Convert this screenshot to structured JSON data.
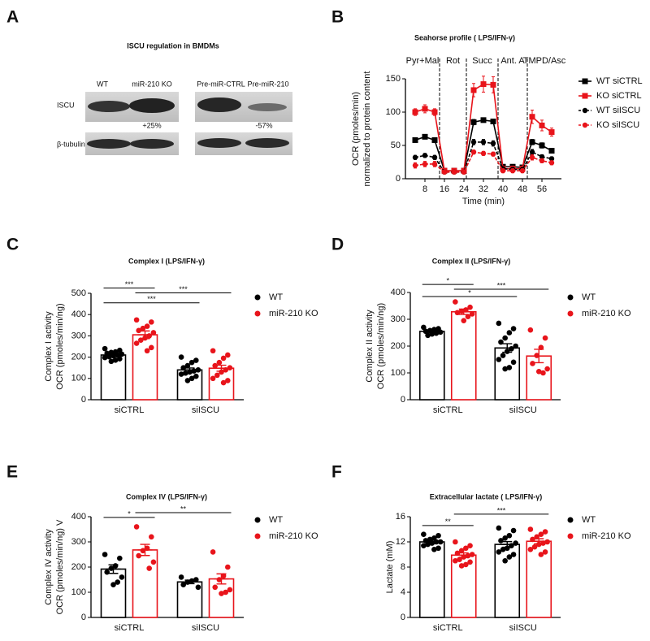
{
  "blot": {
    "panel": "A",
    "title": "ISCU regulation in BMDMs",
    "lanes": [
      "WT",
      "miR-210 KO",
      "Pre-miR-CTRL",
      "Pre-miR-210"
    ],
    "rows": [
      "ISCU",
      "β-tubulin"
    ],
    "changes": [
      "+25%",
      "-57%"
    ]
  },
  "chart_data": [
    {
      "type": "line",
      "panel": "B",
      "title": "Seahorse profile ( LPS/IFN-γ)",
      "x_label": "Time (min)",
      "y_label": [
        "OCR (pmoles/min)",
        "normalized to protein content"
      ],
      "phases": [
        "Pyr+Mal",
        "Rot",
        "Succ",
        "Ant. A",
        "TMPD/Asc"
      ],
      "phase_lines": [
        14,
        25,
        38,
        50
      ],
      "x": [
        4,
        8,
        12,
        16,
        20,
        24,
        28,
        32,
        36,
        40,
        44,
        48,
        52,
        56,
        60
      ],
      "xlim": [
        0,
        64
      ],
      "xticks": [
        8,
        16,
        24,
        32,
        40,
        48,
        56
      ],
      "ylim": [
        0,
        150
      ],
      "yticks": [
        0,
        50,
        100,
        150
      ],
      "series": [
        {
          "name": "WT siCTRL",
          "color": "#000000",
          "marker": "square",
          "dashed": false,
          "values": [
            58,
            63,
            58,
            12,
            12,
            12,
            85,
            88,
            86,
            18,
            18,
            17,
            55,
            50,
            42
          ],
          "errors": [
            3,
            3,
            3,
            2,
            2,
            2,
            4,
            3,
            3,
            3,
            3,
            3,
            4,
            4,
            3
          ]
        },
        {
          "name": "KO siCTRL",
          "color": "#e8141b",
          "marker": "square",
          "dashed": false,
          "values": [
            100,
            105,
            100,
            12,
            12,
            12,
            133,
            142,
            141,
            15,
            15,
            15,
            93,
            80,
            70
          ],
          "errors": [
            5,
            6,
            5,
            3,
            3,
            3,
            10,
            12,
            12,
            4,
            4,
            4,
            10,
            8,
            6
          ]
        },
        {
          "name": "WT siISCU",
          "color": "#000000",
          "marker": "circle",
          "dashed": true,
          "values": [
            32,
            35,
            32,
            10,
            10,
            10,
            55,
            55,
            53,
            15,
            14,
            14,
            40,
            33,
            30
          ],
          "errors": [
            3,
            3,
            3,
            2,
            2,
            2,
            4,
            4,
            4,
            3,
            3,
            3,
            4,
            3,
            3
          ]
        },
        {
          "name": "KO siISCU",
          "color": "#e8141b",
          "marker": "circle",
          "dashed": true,
          "values": [
            20,
            22,
            22,
            10,
            10,
            10,
            40,
            38,
            37,
            12,
            12,
            12,
            32,
            27,
            24
          ],
          "errors": [
            4,
            4,
            4,
            2,
            2,
            2,
            3,
            3,
            3,
            3,
            3,
            3,
            4,
            3,
            3
          ]
        }
      ]
    },
    {
      "type": "bar",
      "panel": "C",
      "title": "Complex I (LPS/IFN-γ)",
      "y_label": [
        "Complex I activity",
        "OCR  (pmoles/min/ng)"
      ],
      "categories": [
        "siCTRL",
        "siISCU"
      ],
      "ylim": [
        0,
        500
      ],
      "yticks": [
        0,
        100,
        200,
        300,
        400,
        500
      ],
      "series": [
        {
          "name": "WT",
          "color": "#000000",
          "values": [
            210,
            140
          ],
          "errors": [
            8,
            9
          ],
          "points": [
            [
              240,
              232,
              225,
              222,
              218,
              214,
              210,
              206,
              202,
              198,
              192,
              186,
              180
            ],
            [
              200,
              185,
              175,
              160,
              150,
              140,
              135,
              130,
              125,
              120,
              110,
              100,
              90
            ]
          ]
        },
        {
          "name": "miR-210 KO",
          "color": "#e8141b",
          "values": [
            305,
            148
          ],
          "errors": [
            18,
            14
          ],
          "points": [
            [
              375,
              365,
              345,
              335,
              325,
              315,
              300,
              290,
              280,
              265,
              245,
              230
            ],
            [
              230,
              210,
              195,
              175,
              160,
              150,
              140,
              130,
              115,
              100,
              90,
              80
            ]
          ]
        }
      ],
      "brackets": [
        {
          "bars": [
            0,
            1
          ],
          "y": 525,
          "label": "***"
        },
        {
          "bars": [
            1,
            3
          ],
          "y": 502,
          "label": "***"
        },
        {
          "bars": [
            0,
            2
          ],
          "y": 455,
          "label": "***"
        }
      ]
    },
    {
      "type": "bar",
      "panel": "D",
      "title": "Complex II (LPS/IFN-γ)",
      "y_label": [
        "Complex II activity",
        "OCR  (pmoles/min/ng)"
      ],
      "categories": [
        "siCTRL",
        "siISCU"
      ],
      "ylim": [
        0,
        400
      ],
      "yticks": [
        0,
        100,
        200,
        300,
        400
      ],
      "series": [
        {
          "name": "WT",
          "color": "#000000",
          "values": [
            255,
            193
          ],
          "errors": [
            4,
            16
          ],
          "points": [
            [
              270,
              265,
              262,
              258,
              255,
              252,
              248,
              245,
              240
            ],
            [
              285,
              265,
              250,
              230,
              215,
              200,
              190,
              180,
              165,
              150,
              140,
              120,
              115
            ]
          ]
        },
        {
          "name": "miR-210 KO",
          "color": "#e8141b",
          "values": [
            328,
            163
          ],
          "errors": [
            10,
            25
          ],
          "points": [
            [
              365,
              345,
              335,
              330,
              325,
              320,
              310,
              295
            ],
            [
              260,
              230,
              195,
              165,
              135,
              115,
              100,
              105
            ]
          ]
        }
      ],
      "brackets": [
        {
          "bars": [
            0,
            1
          ],
          "y": 430,
          "label": "*"
        },
        {
          "bars": [
            1,
            3
          ],
          "y": 412,
          "label": "***"
        },
        {
          "bars": [
            0,
            2
          ],
          "y": 385,
          "label": "*"
        }
      ]
    },
    {
      "type": "bar",
      "panel": "E",
      "title": "Complex IV (LPS/IFN-γ)",
      "y_label": [
        "Complex IV activity",
        "OCR  (pmoles/min/ng) V"
      ],
      "categories": [
        "siCTRL",
        "siISCU"
      ],
      "ylim": [
        0,
        400
      ],
      "yticks": [
        0,
        100,
        200,
        300,
        400
      ],
      "series": [
        {
          "name": "WT",
          "color": "#000000",
          "values": [
            192,
            141
          ],
          "errors": [
            17,
            7
          ],
          "points": [
            [
              250,
              235,
              205,
              195,
              180,
              160,
              140,
              130
            ],
            [
              160,
              150,
              145,
              140,
              130,
              120
            ]
          ]
        },
        {
          "name": "miR-210 KO",
          "color": "#e8141b",
          "values": [
            268,
            153
          ],
          "errors": [
            22,
            20
          ],
          "points": [
            [
              360,
              320,
              275,
              265,
              245,
              220,
              195
            ],
            [
              260,
              200,
              165,
              150,
              120,
              110,
              100,
              95
            ]
          ]
        }
      ],
      "brackets": [
        {
          "bars": [
            0,
            1
          ],
          "y": 397,
          "label": "*"
        },
        {
          "bars": [
            1,
            3
          ],
          "y": 416,
          "label": "**"
        }
      ]
    },
    {
      "type": "bar",
      "panel": "F",
      "title": "Extracellular lactate ( LPS/IFN-γ)",
      "y_label": [
        "Lactate (mM)"
      ],
      "categories": [
        "siCTRL",
        "siISCU"
      ],
      "ylim": [
        0,
        16
      ],
      "yticks": [
        0,
        4,
        8,
        12,
        16
      ],
      "series": [
        {
          "name": "WT",
          "color": "#000000",
          "values": [
            12,
            11.6
          ],
          "errors": [
            0.25,
            0.45
          ],
          "points": [
            [
              13.2,
              13,
              12.6,
              12.4,
              12.2,
              12,
              12,
              11.8,
              11.6,
              11.4,
              11,
              10.8
            ],
            [
              14.2,
              13.8,
              13,
              12.6,
              12.2,
              11.8,
              11.4,
              11,
              10.8,
              10.4,
              10,
              9.6,
              9
            ]
          ]
        },
        {
          "name": "miR-210 KO",
          "color": "#e8141b",
          "values": [
            9.9,
            12.1
          ],
          "errors": [
            0.35,
            0.4
          ],
          "points": [
            [
              12,
              11.4,
              11,
              10.6,
              10.2,
              10,
              9.8,
              9.6,
              9.2,
              9,
              8.8,
              8.4,
              8.2
            ],
            [
              14,
              13.6,
              13.2,
              12.8,
              12.4,
              12,
              11.8,
              11.6,
              11.2,
              10.8,
              10.4,
              10
            ]
          ]
        }
      ],
      "brackets": [
        {
          "bars": [
            0,
            1
          ],
          "y": 14.6,
          "label": "**"
        },
        {
          "bars": [
            1,
            3
          ],
          "y": 16.4,
          "label": "***"
        }
      ]
    }
  ]
}
